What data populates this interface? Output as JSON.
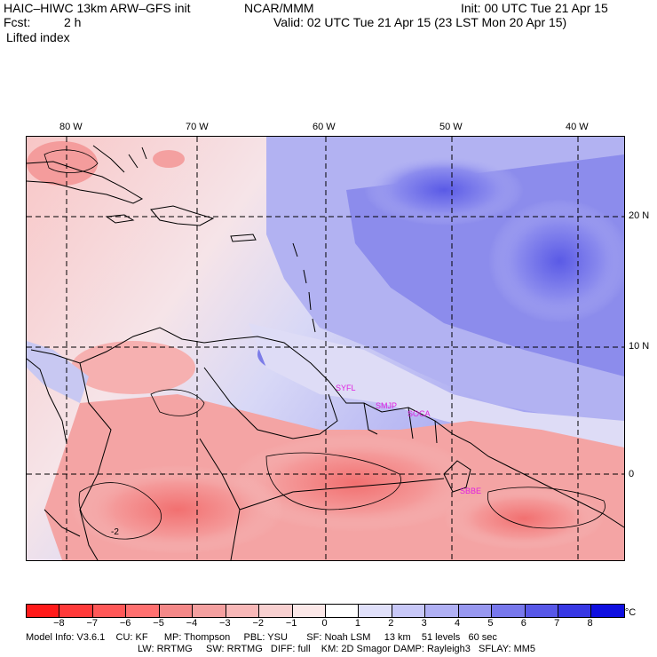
{
  "header": {
    "model_title": "HAIC–HIWC 13km ARW–GFS init",
    "org": "NCAR/MMM",
    "init": "Init: 00 UTC Tue 21 Apr 15",
    "fcst_label": "Fcst:",
    "fcst_value": "2 h",
    "valid": "Valid: 02 UTC Tue 21 Apr 15 (23 LST Mon 20 Apr 15)",
    "field": "Lifted index"
  },
  "map": {
    "lon_labels": [
      "80 W",
      "70 W",
      "60 W",
      "50 W",
      "40 W"
    ],
    "lat_labels": [
      "20 N",
      "10 N",
      "0"
    ],
    "stations": [
      "SYFL",
      "SMJP",
      "SOCA",
      "SBBE"
    ],
    "contour_label": "-2",
    "colors": {
      "strong_negative": "#ff4040",
      "negative": "#f4a0a0",
      "weak_negative": "#f8d0d0",
      "neutral": "#ffffff",
      "weak_positive": "#d8d8f8",
      "positive": "#9898f0",
      "strong_positive": "#5050e8"
    }
  },
  "colorbar": {
    "labels": [
      "−8",
      "−7",
      "−6",
      "−5",
      "−4",
      "−3",
      "−2",
      "−1",
      "0",
      "1",
      "2",
      "3",
      "4",
      "5",
      "6",
      "7",
      "8"
    ],
    "unit": "°C",
    "colors": [
      "#ff1a1a",
      "#ff3a3a",
      "#ff5858",
      "#ff7070",
      "#f48888",
      "#f4a0a0",
      "#f8b8b8",
      "#f8d0d0",
      "#fce8e8",
      "#ffffff",
      "#e0e0fa",
      "#c8c8f8",
      "#b0b0f4",
      "#9898f0",
      "#7878ec",
      "#5858e8",
      "#3838e4",
      "#1010e0"
    ]
  },
  "footer": {
    "line1": "Model Info: V3.6.1    CU: KF      MP: Thompson     PBL: YSU       SF: Noah LSM     13 km    51 levels   60 sec",
    "line2": "LW: RRTMG     SW: RRTMG   DIFF: full    KM: 2D Smagor DAMP: Rayleigh3   SFLAY: MM5"
  }
}
